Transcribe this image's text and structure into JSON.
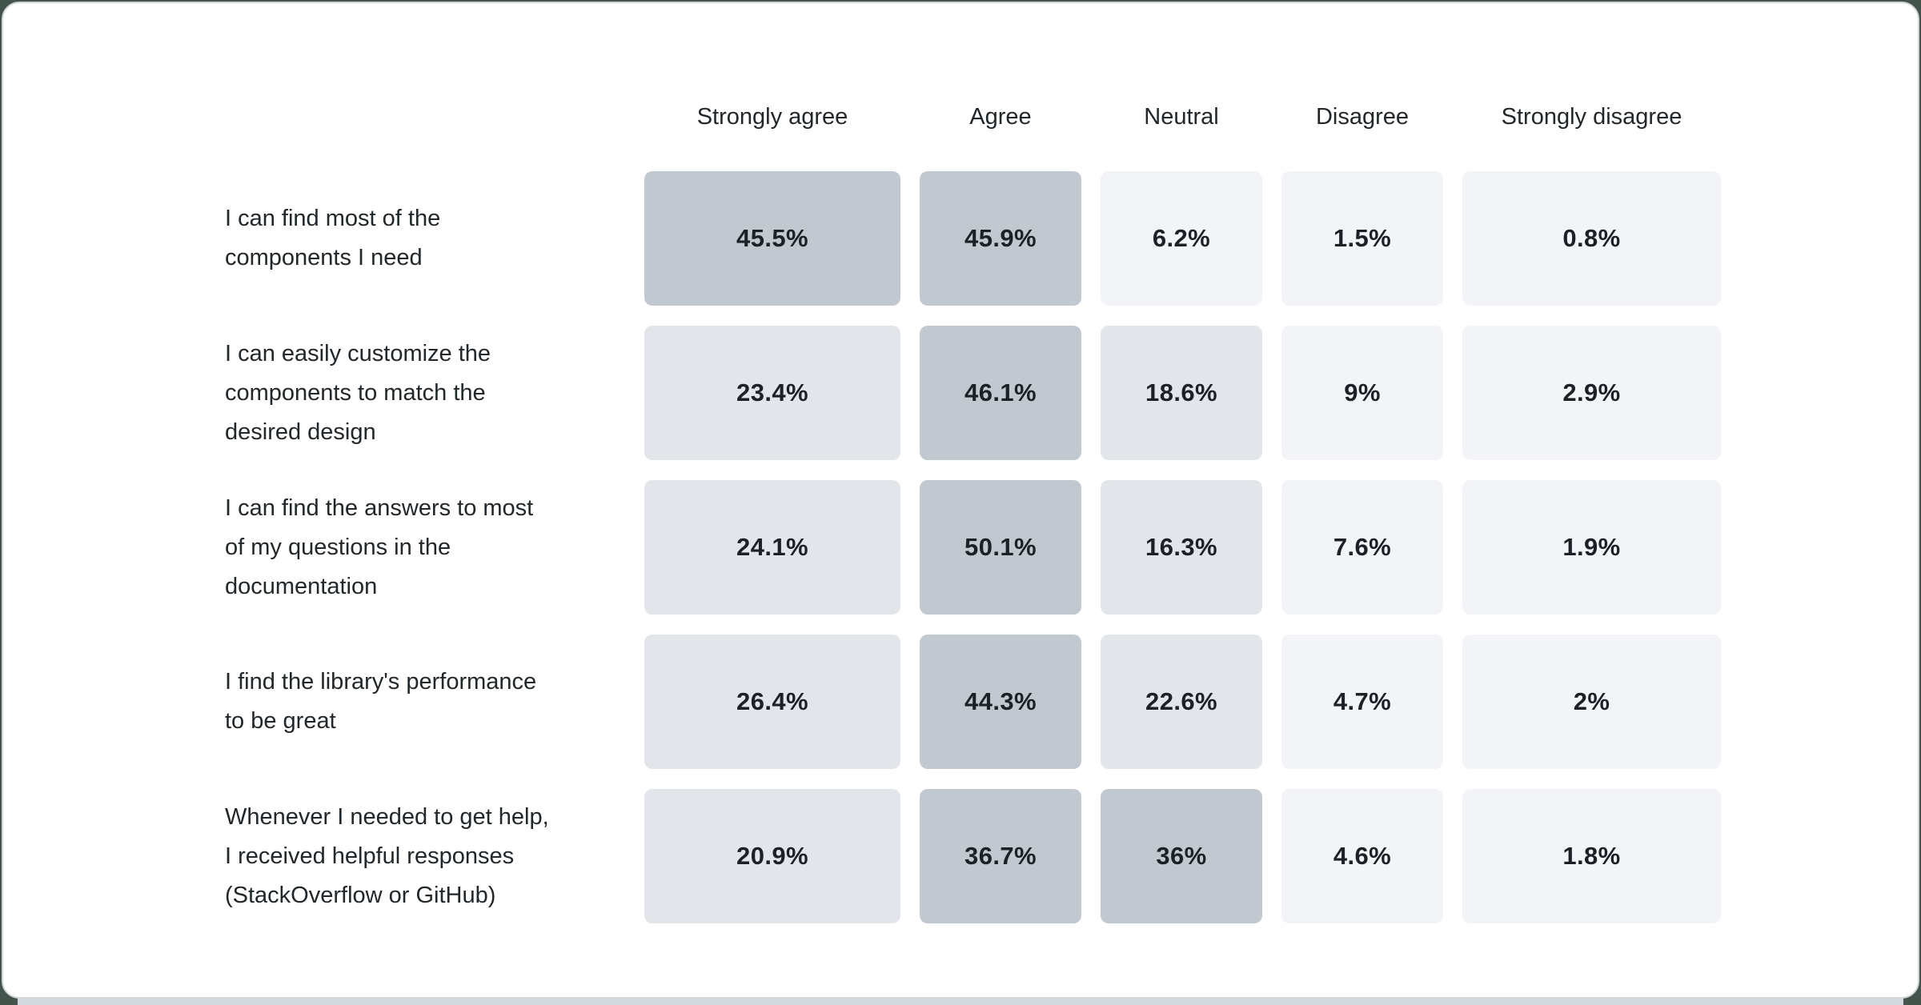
{
  "chart_data": {
    "type": "heatmap",
    "columns": [
      "Strongly agree",
      "Agree",
      "Neutral",
      "Disagree",
      "Strongly disagree"
    ],
    "rows": [
      {
        "label": "I can find most of the components I need",
        "label_lines": [
          "I can find most of the",
          "components I need"
        ],
        "values": [
          45.5,
          45.9,
          6.2,
          1.5,
          0.8
        ],
        "values_display": [
          "45.5%",
          "45.9%",
          "6.2%",
          "1.5%",
          "0.8%"
        ]
      },
      {
        "label": "I can easily customize the components to match the desired design",
        "label_lines": [
          "I can easily customize the",
          "components to match the",
          "desired design"
        ],
        "values": [
          23.4,
          46.1,
          18.6,
          9,
          2.9
        ],
        "values_display": [
          "23.4%",
          "46.1%",
          "18.6%",
          "9%",
          "2.9%"
        ]
      },
      {
        "label": "I can find the answers to most of my questions in the documentation",
        "label_lines": [
          "I can find the answers to most",
          "of my questions in the",
          "documentation"
        ],
        "values": [
          24.1,
          50.1,
          16.3,
          7.6,
          1.9
        ],
        "values_display": [
          "24.1%",
          "50.1%",
          "16.3%",
          "7.6%",
          "1.9%"
        ]
      },
      {
        "label": "I find the library's performance to be great",
        "label_lines": [
          "I find the library's performance",
          "to be great"
        ],
        "values": [
          26.4,
          44.3,
          22.6,
          4.7,
          2
        ],
        "values_display": [
          "26.4%",
          "44.3%",
          "22.6%",
          "4.7%",
          "2%"
        ]
      },
      {
        "label": "Whenever I needed to get help, I received helpful responses (StackOverflow or GitHub)",
        "label_lines": [
          "Whenever I needed to get help,",
          "I received helpful responses",
          "(StackOverflow or GitHub)"
        ],
        "values": [
          20.9,
          36.7,
          36,
          4.6,
          1.8
        ],
        "values_display": [
          "20.9%",
          "36.7%",
          "36%",
          "4.6%",
          "1.8%"
        ]
      }
    ],
    "color_scale": {
      "high_threshold": 30,
      "mid_threshold": 10,
      "high_color": "#c1c8d0",
      "mid_color": "#e2e5e9",
      "low_color": "#f2f4f7"
    },
    "legend_position": "none",
    "grid": false
  },
  "frame": {
    "card_background": "#ffffff",
    "card_border_color": "#d3d8dc",
    "bottom_strip_color": "#d3d9de",
    "page_background": "#42544b",
    "text_color": "#21272a"
  }
}
